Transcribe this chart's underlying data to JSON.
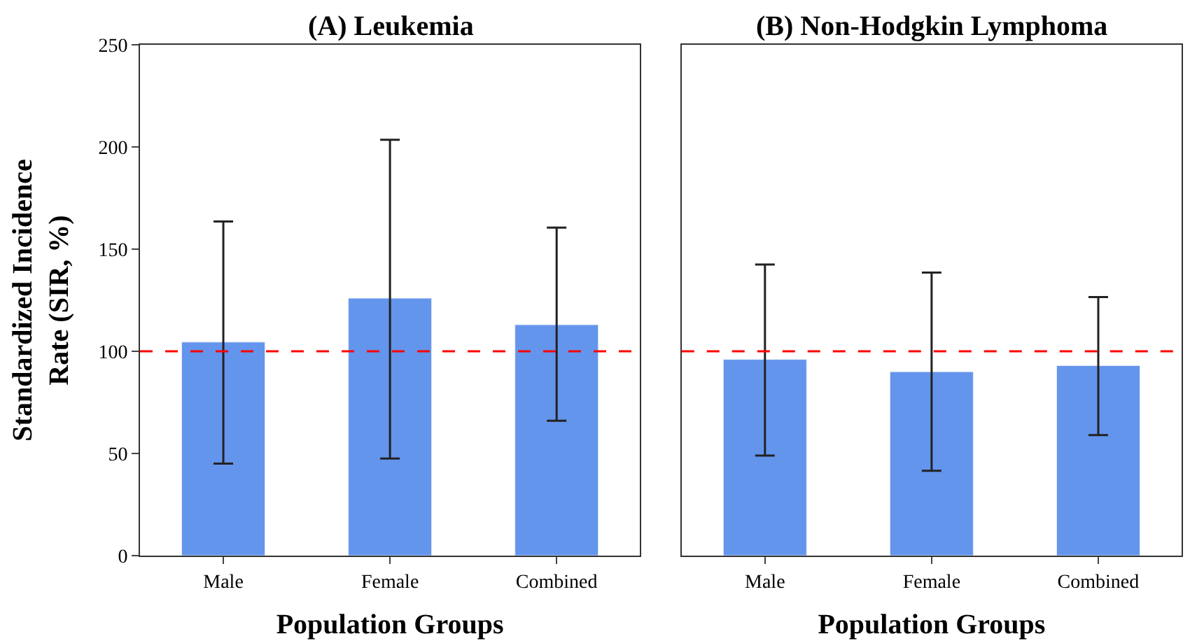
{
  "chart_data": [
    {
      "type": "bar",
      "title": "(A) Leukemia",
      "xlabel": "Population Groups",
      "ylabel": "Standardized Incidence\nRate (SIR, %)",
      "categories": [
        "Male",
        "Female",
        "Combined"
      ],
      "values": [
        104.5,
        126,
        113
      ],
      "errors": [
        [
          45,
          163.5
        ],
        [
          47.5,
          203.5
        ],
        [
          66,
          160.5
        ]
      ],
      "color": "#6495ed",
      "ylim": [
        0,
        250
      ],
      "yticks": [
        0,
        50,
        100,
        150,
        200,
        250
      ],
      "ref_lines": [
        {
          "axis": "y",
          "value": 100,
          "color": "#ff0000",
          "line_style": "dashed"
        }
      ]
    },
    {
      "type": "bar",
      "title": "(B) Non-Hodgkin Lymphoma",
      "xlabel": "Population Groups",
      "categories": [
        "Male",
        "Female",
        "Combined"
      ],
      "values": [
        96,
        90,
        93
      ],
      "errors": [
        [
          49,
          142.5
        ],
        [
          41.5,
          138.5
        ],
        [
          59,
          126.5
        ]
      ],
      "color": "#6495ed",
      "ylim": [
        0,
        250
      ],
      "tick_labels": "x",
      "ref_lines": [
        {
          "axis": "y",
          "value": 100,
          "color": "#ff0000",
          "line_style": "dashed"
        }
      ]
    }
  ]
}
